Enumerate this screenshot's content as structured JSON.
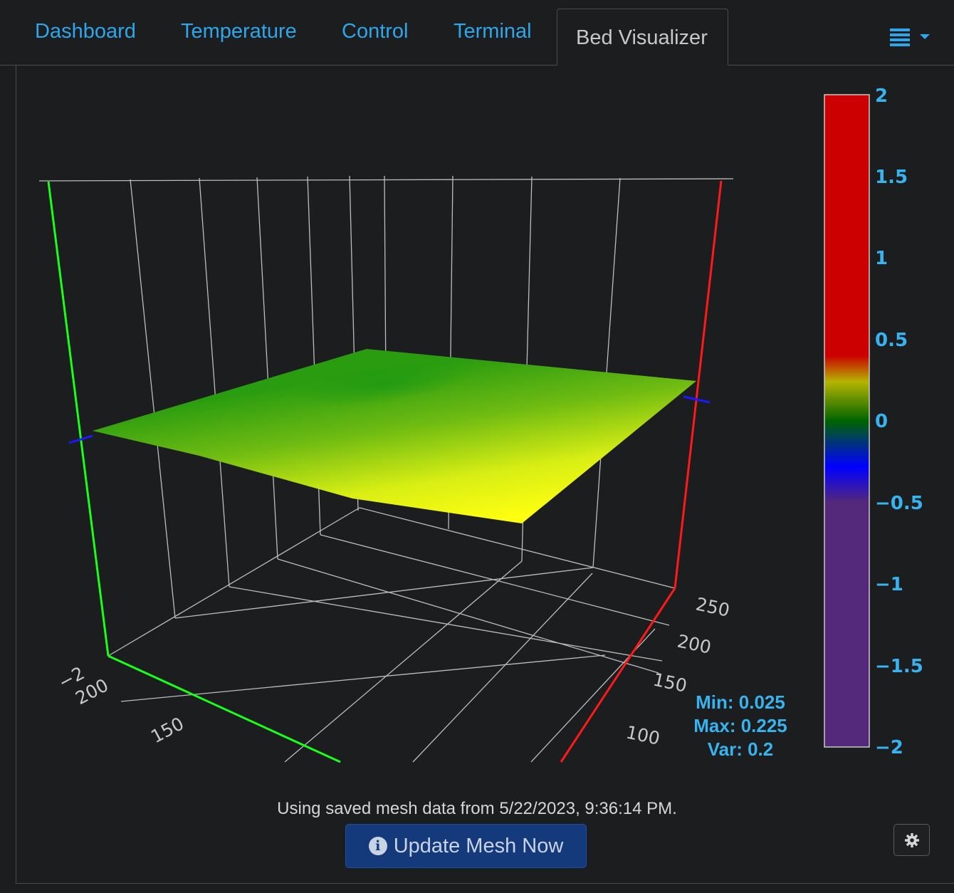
{
  "tabs": [
    {
      "label": "Dashboard"
    },
    {
      "label": "Temperature"
    },
    {
      "label": "Control"
    },
    {
      "label": "Terminal"
    },
    {
      "label": "Bed Visualizer"
    }
  ],
  "active_tab": "Bed Visualizer",
  "toolbar": {
    "menu_icon": "list-icon",
    "menu_caret": "caret-down-icon"
  },
  "colors": {
    "tab_link": "#2fa6ea",
    "stats_text": "#37b3f0",
    "surface_low": "#1f9a12",
    "surface_high": "#ffff10",
    "x_axis": "#ff1a1a",
    "y_axis": "#1aff1a",
    "z_axis": "#1a1aff"
  },
  "chart_data": {
    "type": "surface",
    "colorscale": [
      {
        "value": -2,
        "color": "#54287a"
      },
      {
        "value": -0.5,
        "color": "#54287a"
      },
      {
        "value": -0.25,
        "color": "#0000ff"
      },
      {
        "value": 0,
        "color": "#006400"
      },
      {
        "value": 0.25,
        "color": "#b5b400"
      },
      {
        "value": 0.4,
        "color": "#cc0000"
      },
      {
        "value": 2,
        "color": "#cc0000"
      }
    ],
    "colorbar_ticks": [
      "2",
      "1.5",
      "1",
      "0.5",
      "0",
      "−0.5",
      "−1",
      "−1.5",
      "−2"
    ],
    "zlim": [
      -2,
      2
    ],
    "x_ticks": [
      "250",
      "200",
      "150",
      "100"
    ],
    "y_ticks": [
      "200",
      "150"
    ],
    "z_ticks": [
      "−2"
    ],
    "mesh_range": {
      "min": 0.025,
      "max": 0.225
    }
  },
  "stats": {
    "min": "Min: 0.025",
    "max": "Max: 0.225",
    "var": "Var: 0.2"
  },
  "footer": {
    "status": "Using saved mesh data from 5/22/2023, 9:36:14 PM.",
    "update_button": "Update Mesh Now",
    "update_icon": "info-icon",
    "settings_icon": "gear-icon"
  }
}
